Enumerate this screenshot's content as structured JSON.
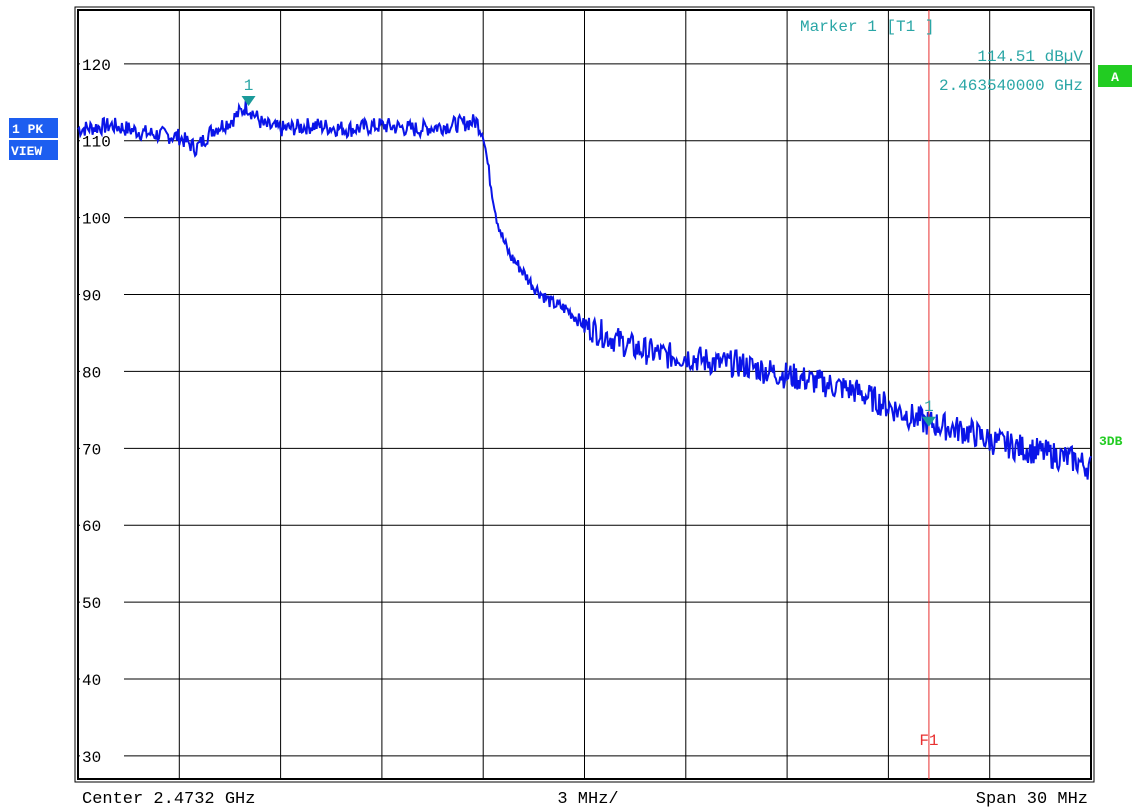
{
  "side_badges": {
    "trace_label": "1 PK",
    "view_label": "VIEW",
    "mode_label": "A",
    "limit_label": "3DB"
  },
  "marker_readout": {
    "title": "Marker 1 [T1 ]",
    "level": "114.51 dBµV",
    "freq": "2.463540000 GHz"
  },
  "footer": {
    "center": "Center 2.4732 GHz",
    "div": "3 MHz/",
    "span": "Span 30 MHz"
  },
  "colors": {
    "trace": "#0a14e8",
    "marker": "#1a9a9a",
    "readout": "#2aa6a6",
    "frequency_line": "#e83030",
    "badge_blue": "#1d5ef0",
    "badge_green": "#22cc22",
    "grid": "#000000"
  },
  "chart_data": {
    "type": "line",
    "xlabel": "",
    "ylabel": "",
    "x_unit": "MHz offset from center 2.4732 GHz",
    "xlim": [
      -15,
      15
    ],
    "ylim": [
      27,
      127
    ],
    "y_ticks": [
      30,
      40,
      50,
      60,
      70,
      80,
      90,
      100,
      110,
      120
    ],
    "grid": true,
    "series": [
      {
        "x": [
          -15,
          -14,
          -13,
          -12,
          -11.5,
          -11,
          -10.5,
          -10,
          -9.5,
          -9,
          -8,
          -7,
          -6,
          -5,
          -4,
          -3.2,
          -3,
          -2.8,
          -2.6,
          -2.4,
          -2.2,
          -2,
          -1.5,
          -1,
          -0.5,
          0,
          0.5,
          1,
          1.5,
          2,
          2.5,
          3,
          3.5,
          4,
          4.5,
          5,
          5.5,
          6,
          6.5,
          7,
          7.5,
          8,
          8.5,
          9,
          9.5,
          10,
          10.5,
          11,
          11.5,
          12,
          12.5,
          13,
          13.5,
          14,
          14.5,
          15
        ],
        "y": [
          111.5,
          112,
          111,
          110.5,
          109,
          111.5,
          112.5,
          114.5,
          112,
          111.5,
          112,
          111.5,
          112,
          111.5,
          112,
          112.5,
          111,
          105,
          100,
          97,
          95,
          94,
          91,
          89,
          88,
          86,
          85,
          84,
          83,
          82.5,
          82,
          82,
          81.5,
          81,
          81,
          80.5,
          80,
          79.5,
          79,
          78.5,
          78,
          77.5,
          76.5,
          75.5,
          74.5,
          73.5,
          73,
          72.5,
          72,
          71,
          70.5,
          70,
          69.5,
          69,
          68.5,
          67.5
        ]
      }
    ],
    "markers": [
      {
        "label": "1",
        "trace": "T1",
        "x": -9.95,
        "y": 114.51
      },
      {
        "label": "1",
        "x": 10.2,
        "y": 72.8
      }
    ],
    "vertical_lines": [
      {
        "label": "F1",
        "x": 10.2
      }
    ]
  }
}
